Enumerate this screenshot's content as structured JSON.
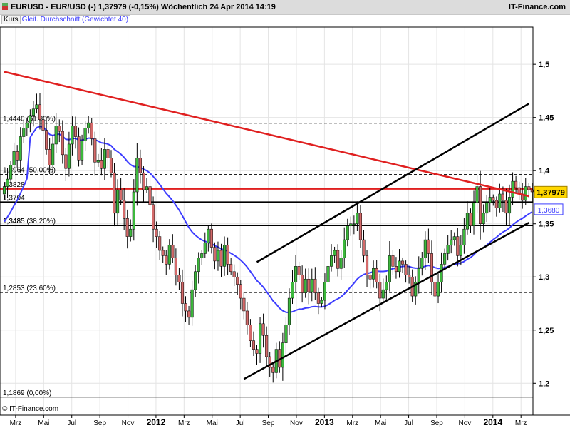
{
  "header": {
    "title": "EURUSD - EUR/USD (-)    1,37979 (-0,15%)    Wöchentlich  24 Apr 2014 14:19",
    "source": "IT-Finance.com"
  },
  "legend": {
    "kurs": "Kurs",
    "ma": "Gleit. Durchschnitt (Gewichtet 40)"
  },
  "footer": {
    "copyright": "© IT-Finance.com"
  },
  "colors": {
    "up": "#3cb83c",
    "down": "#d46a6a",
    "ma": "#3d3dff",
    "trend_red": "#e02020",
    "channel": "#000000",
    "last_price_bg": "#ffd700",
    "ma_price_bg": "#ffffff"
  },
  "chart_data": {
    "type": "candlestick",
    "ylim": [
      1.17,
      1.535
    ],
    "yticks": [
      "1,5",
      "1,45",
      "1,4",
      "1,35",
      "1,3",
      "1,25",
      "1,2"
    ],
    "ytick_values": [
      1.5,
      1.45,
      1.4,
      1.35,
      1.3,
      1.25,
      1.2
    ],
    "xticks": [
      {
        "label": "Mrz",
        "year": false
      },
      {
        "label": "Mai",
        "year": false
      },
      {
        "label": "Jul",
        "year": false
      },
      {
        "label": "Sep",
        "year": false
      },
      {
        "label": "Nov",
        "year": false
      },
      {
        "label": "2012",
        "year": true
      },
      {
        "label": "Mrz",
        "year": false
      },
      {
        "label": "Mai",
        "year": false
      },
      {
        "label": "Jul",
        "year": false
      },
      {
        "label": "Sep",
        "year": false
      },
      {
        "label": "Nov",
        "year": false
      },
      {
        "label": "2013",
        "year": true
      },
      {
        "label": "Mrz",
        "year": false
      },
      {
        "label": "Mai",
        "year": false
      },
      {
        "label": "Jul",
        "year": false
      },
      {
        "label": "Sep",
        "year": false
      },
      {
        "label": "Nov",
        "year": false
      },
      {
        "label": "2014",
        "year": true
      },
      {
        "label": "Mrz",
        "year": false
      }
    ],
    "fib_levels": [
      {
        "label": "1,4446 (61,80%)",
        "value": 1.4446,
        "style": "dashed"
      },
      {
        "label": "1,3964 (50,00%)",
        "value": 1.3964,
        "style": "dashed"
      },
      {
        "label": "1,3485 (38,20%)",
        "value": 1.3485,
        "style": "dashed"
      },
      {
        "label": "1,2853 (23,60%)",
        "value": 1.2853,
        "style": "dashed"
      },
      {
        "label": "1,1869 (0,00%)",
        "value": 1.1869,
        "style": "solid"
      }
    ],
    "horizontal_lines": [
      {
        "label": "1,3828",
        "value": 1.3828,
        "color": "red"
      },
      {
        "label": "1,3704",
        "value": 1.3704,
        "color": "black"
      },
      {
        "label": "1,3485",
        "value": 1.3485,
        "color": "black"
      }
    ],
    "last_price": {
      "label": "1,37979",
      "value": 1.37979
    },
    "ma_price": {
      "label": "1,3680",
      "value": 1.368
    },
    "trendlines": [
      {
        "name": "red-downtrend",
        "from": [
          0,
          1.493
        ],
        "to": [
          162,
          1.376
        ],
        "color": "red"
      },
      {
        "name": "channel-lower",
        "from": [
          74,
          1.204
        ],
        "to": [
          162,
          1.351
        ],
        "color": "black"
      },
      {
        "name": "channel-upper",
        "from": [
          78,
          1.314
        ],
        "to": [
          162,
          1.463
        ],
        "color": "black"
      }
    ],
    "closes": [
      1.385,
      1.392,
      1.405,
      1.418,
      1.41,
      1.432,
      1.44,
      1.445,
      1.452,
      1.458,
      1.462,
      1.448,
      1.438,
      1.42,
      1.405,
      1.425,
      1.442,
      1.437,
      1.415,
      1.402,
      1.425,
      1.442,
      1.432,
      1.41,
      1.428,
      1.44,
      1.445,
      1.43,
      1.408,
      1.41,
      1.402,
      1.42,
      1.412,
      1.398,
      1.36,
      1.382,
      1.372,
      1.355,
      1.338,
      1.345,
      1.38,
      1.412,
      1.398,
      1.382,
      1.385,
      1.368,
      1.345,
      1.338,
      1.325,
      1.32,
      1.312,
      1.33,
      1.318,
      1.302,
      1.295,
      1.275,
      1.268,
      1.262,
      1.288,
      1.305,
      1.318,
      1.322,
      1.332,
      1.345,
      1.328,
      1.315,
      1.325,
      1.31,
      1.33,
      1.312,
      1.305,
      1.3,
      1.293,
      1.28,
      1.268,
      1.255,
      1.24,
      1.232,
      1.228,
      1.256,
      1.245,
      1.225,
      1.215,
      1.21,
      1.232,
      1.215,
      1.238,
      1.255,
      1.28,
      1.295,
      1.31,
      1.302,
      1.285,
      1.298,
      1.286,
      1.298,
      1.285,
      1.275,
      1.278,
      1.295,
      1.31,
      1.32,
      1.325,
      1.308,
      1.318,
      1.335,
      1.348,
      1.35,
      1.35,
      1.36,
      1.335,
      1.32,
      1.302,
      1.298,
      1.308,
      1.295,
      1.28,
      1.288,
      1.295,
      1.32,
      1.31,
      1.305,
      1.315,
      1.312,
      1.302,
      1.3,
      1.282,
      1.295,
      1.308,
      1.318,
      1.335,
      1.322,
      1.295,
      1.282,
      1.295,
      1.312,
      1.322,
      1.33,
      1.335,
      1.338,
      1.32,
      1.33,
      1.345,
      1.36,
      1.348,
      1.37,
      1.385,
      1.35,
      1.36,
      1.37,
      1.375,
      1.372,
      1.365,
      1.378,
      1.372,
      1.36,
      1.375,
      1.39,
      1.384,
      1.378,
      1.372,
      1.385,
      1.382,
      1.38
    ]
  }
}
